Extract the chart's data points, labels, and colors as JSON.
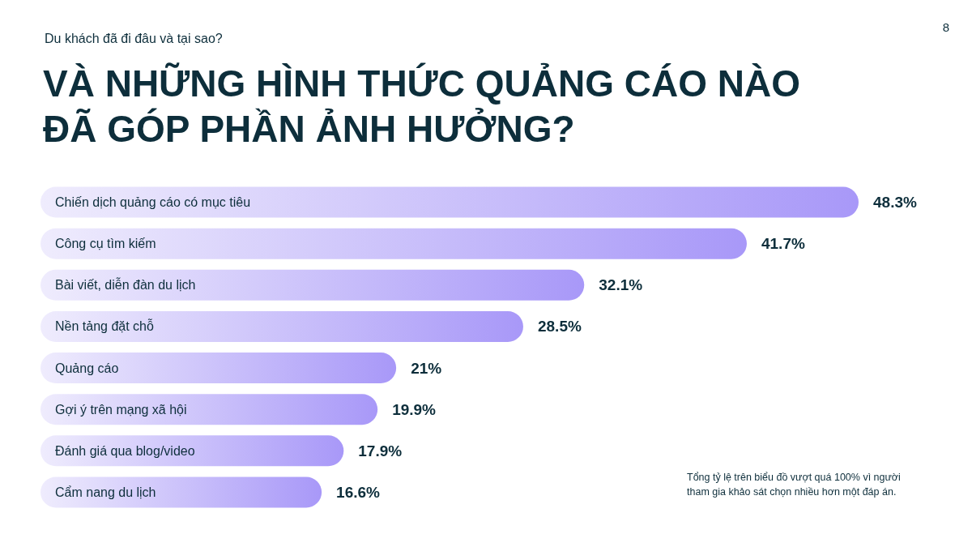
{
  "chart_data": {
    "type": "bar",
    "orientation": "horizontal",
    "title": "VÀ NHỮNG HÌNH THỨC QUẢNG CÁO NÀO\nĐÃ GÓP PHẦN ẢNH HƯỞNG?",
    "subtitle": "Du khách đã đi đâu và tại sao?",
    "categories": [
      "Chiến dịch quảng cáo có mục tiêu",
      "Công cụ tìm kiếm",
      "Bài viết, diễn đàn du lịch",
      "Nền tảng đặt chỗ",
      "Quảng cáo",
      "Gợi ý trên mạng xã hội",
      "Đánh giá qua blog/video",
      "Cẩm nang du lịch"
    ],
    "values": [
      48.3,
      41.7,
      32.1,
      28.5,
      21,
      19.9,
      17.9,
      16.6
    ],
    "value_labels": [
      "48.3%",
      "41.7%",
      "32.1%",
      "28.5%",
      "21%",
      "19.9%",
      "17.9%",
      "16.6%"
    ],
    "color": "#a898f8",
    "annotations": [
      "8",
      "Tổng tỷ lệ trên biểu đồ vượt quá 100% vì người\ntham gia khảo sát chọn nhiều hơn một đáp án."
    ]
  }
}
